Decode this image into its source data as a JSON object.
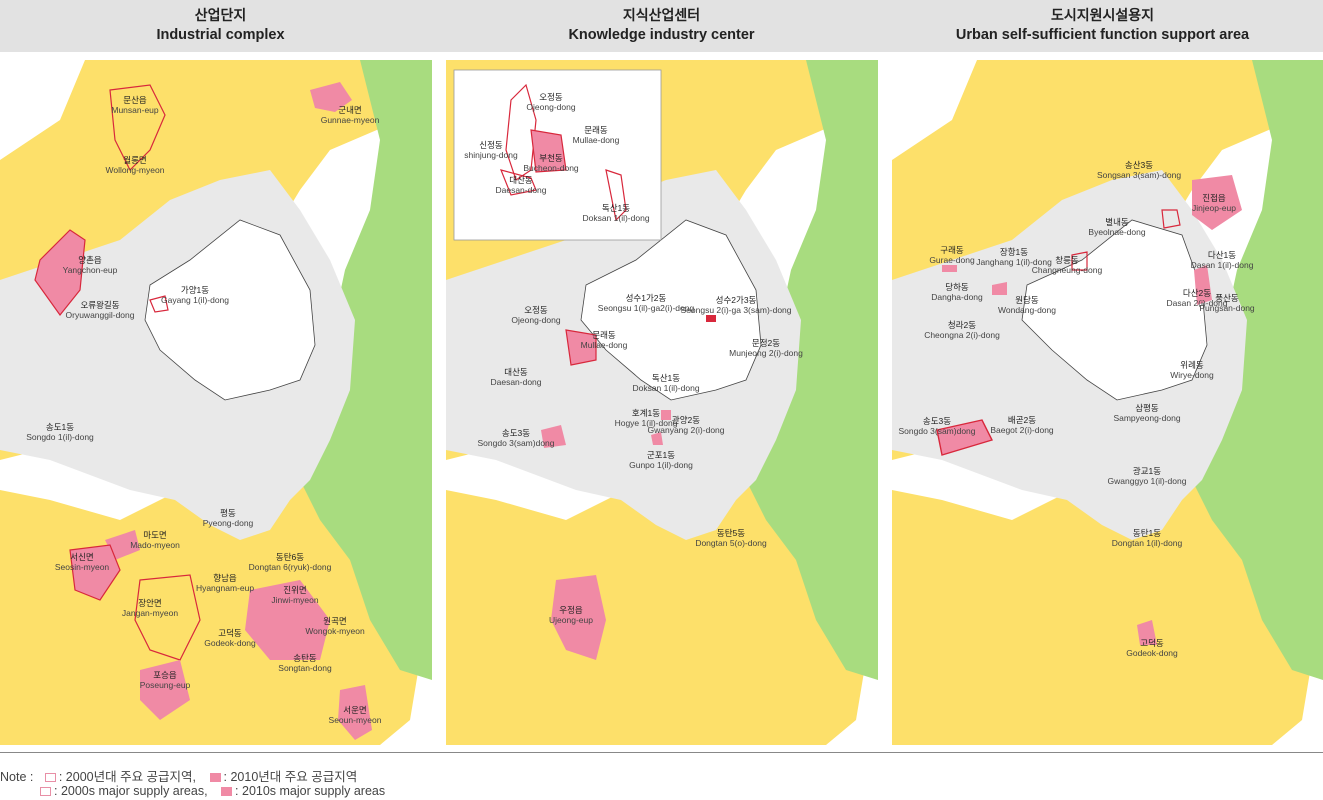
{
  "panels": [
    {
      "title_ko": "산업단지",
      "title_en": "Industrial complex"
    },
    {
      "title_ko": "지식산업센터",
      "title_en": "Knowledge industry center"
    },
    {
      "title_ko": "도시지원시설용지",
      "title_en": "Urban self-sufficient function support area"
    }
  ],
  "colors": {
    "header_bg": "#e2e2e2",
    "yellow": "#fde06a",
    "gray": "#e9e9e9",
    "green": "#a8dc7f",
    "pink": "#f08aa5",
    "red_outline": "#d8283c",
    "seoul": "#ffffff"
  },
  "labels1": [
    {
      "ko": "문산읍",
      "en": "Munsan-eup"
    },
    {
      "ko": "군내면",
      "en": "Gunnae-myeon"
    },
    {
      "ko": "월롱면",
      "en": "Wollong-myeon"
    },
    {
      "ko": "양촌읍",
      "en": "Yangchon-eup"
    },
    {
      "ko": "오류왕길동",
      "en": "Oryuwanggil-dong"
    },
    {
      "ko": "가양1동",
      "en": "Gayang 1(il)-dong"
    },
    {
      "ko": "송도1동",
      "en": "Songdo 1(il)-dong"
    },
    {
      "ko": "평동",
      "en": "Pyeong-dong"
    },
    {
      "ko": "마도면",
      "en": "Mado-myeon"
    },
    {
      "ko": "서신면",
      "en": "Seosin-myeon"
    },
    {
      "ko": "동탄6동",
      "en": "Dongtan 6(ryuk)-dong"
    },
    {
      "ko": "향남읍",
      "en": "Hyangnam-eup"
    },
    {
      "ko": "진위면",
      "en": "Jinwi-myeon"
    },
    {
      "ko": "장안면",
      "en": "Jangan-myeon"
    },
    {
      "ko": "원곡면",
      "en": "Wongok-myeon"
    },
    {
      "ko": "고덕동",
      "en": "Godeok-dong"
    },
    {
      "ko": "송탄동",
      "en": "Songtan-dong"
    },
    {
      "ko": "포승읍",
      "en": "Poseung-eup"
    },
    {
      "ko": "서운면",
      "en": "Seoun-myeon"
    }
  ],
  "labels2": [
    {
      "ko": "오정동",
      "en": "Ojeong-dong"
    },
    {
      "ko": "문래동",
      "en": "Mullae-dong"
    },
    {
      "ko": "신정동",
      "en": "shinjung-dong"
    },
    {
      "ko": "부천동",
      "en": "Bucheon-dong"
    },
    {
      "ko": "대산동",
      "en": "Daesan-dong"
    },
    {
      "ko": "독산1동",
      "en": "Doksan 1(il)-dong"
    },
    {
      "ko": "성수1가2동",
      "en": "Seongsu 1(il)-ga2(i)-dong"
    },
    {
      "ko": "성수2가3동",
      "en": "Seongsu 2(i)-ga 3(sam)-dong"
    },
    {
      "ko": "오정동",
      "en": "Ojeong-dong"
    },
    {
      "ko": "문래동",
      "en": "Mullae-dong"
    },
    {
      "ko": "문정2동",
      "en": "Munjeong 2(i)-dong"
    },
    {
      "ko": "대산동",
      "en": "Daesan-dong"
    },
    {
      "ko": "독산1동",
      "en": "Doksan 1(il)-dong"
    },
    {
      "ko": "호계1동",
      "en": "Hogye 1(il)-dong"
    },
    {
      "ko": "관양2동",
      "en": "Gwanyang 2(i)-dong"
    },
    {
      "ko": "송도3동",
      "en": "Songdo 3(sam)dong"
    },
    {
      "ko": "군포1동",
      "en": "Gunpo 1(il)-dong"
    },
    {
      "ko": "동탄5동",
      "en": "Dongtan 5(o)-dong"
    },
    {
      "ko": "우정읍",
      "en": "Ujeong-eup"
    }
  ],
  "labels3": [
    {
      "ko": "송산3동",
      "en": "Songsan 3(sam)-dong"
    },
    {
      "ko": "진접읍",
      "en": "Jinjeop-eup"
    },
    {
      "ko": "별내동",
      "en": "Byeolnae-dong"
    },
    {
      "ko": "구래동",
      "en": "Gurae-dong"
    },
    {
      "ko": "장항1동",
      "en": "Janghang 1(il)-dong"
    },
    {
      "ko": "창릉동",
      "en": "Changneung-dong"
    },
    {
      "ko": "다산1동",
      "en": "Dasan 1(il)-dong"
    },
    {
      "ko": "당하동",
      "en": "Dangha-dong"
    },
    {
      "ko": "원당동",
      "en": "Wondang-dong"
    },
    {
      "ko": "다산2동",
      "en": "Dasan 2(i)-dong"
    },
    {
      "ko": "풍산동",
      "en": "Pungsan-dong"
    },
    {
      "ko": "청라2동",
      "en": "Cheongna 2(i)-dong"
    },
    {
      "ko": "위례동",
      "en": "Wirye-dong"
    },
    {
      "ko": "송도3동",
      "en": "Songdo 3(sam)dong"
    },
    {
      "ko": "배곧2동",
      "en": "Baegot 2(i)-dong"
    },
    {
      "ko": "삼평동",
      "en": "Sampyeong-dong"
    },
    {
      "ko": "광교1동",
      "en": "Gwanggyo 1(il)-dong"
    },
    {
      "ko": "동탄1동",
      "en": "Dongtan 1(il)-dong"
    },
    {
      "ko": "고덕동",
      "en": "Godeok-dong"
    }
  ],
  "note": {
    "label": "Note :",
    "ko_2000": ": 2000년대 주요 공급지역,",
    "ko_2010": ": 2010년대 주요 공급지역",
    "en_2000": ": 2000s major supply areas,",
    "en_2010": ": 2010s major supply areas"
  }
}
